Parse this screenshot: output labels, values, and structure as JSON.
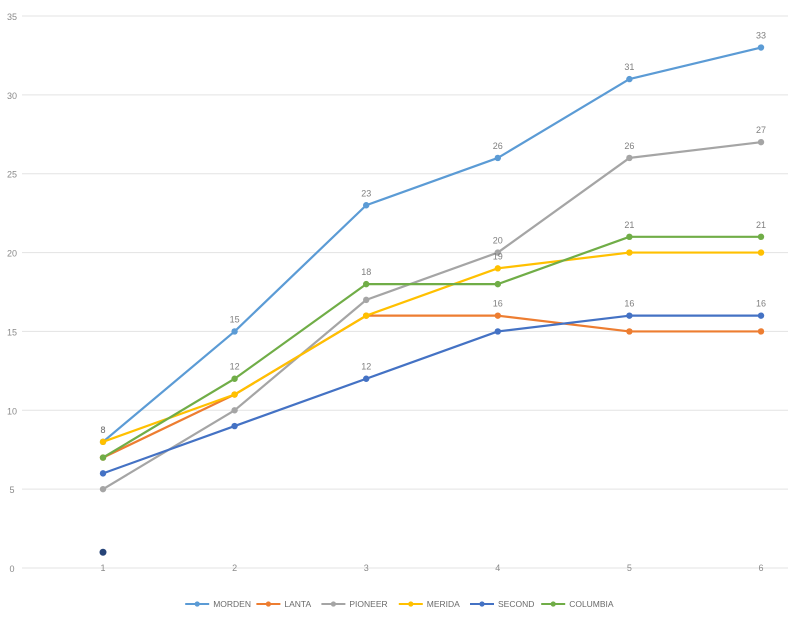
{
  "chart_data": {
    "type": "line",
    "title": "",
    "xlabel": "",
    "ylabel": "",
    "x": [
      1,
      2,
      3,
      4,
      5,
      6
    ],
    "ylim": [
      0,
      35
    ],
    "yticks": [
      0,
      5,
      10,
      15,
      20,
      25,
      30,
      35
    ],
    "grid": true,
    "legend_position": "bottom",
    "series": [
      {
        "name": "MORDEN",
        "color": "#5B9BD5",
        "values": [
          8,
          15,
          23,
          26,
          31,
          33
        ],
        "labels": [
          "8",
          "15",
          "23",
          "26",
          "31",
          "33"
        ]
      },
      {
        "name": "LANTA",
        "color": "#ED7D31",
        "values": [
          7,
          11,
          16,
          16,
          15,
          15
        ],
        "labels": [
          "",
          "",
          "",
          "16",
          "",
          ""
        ]
      },
      {
        "name": "PIONEER",
        "color": "#A5A5A5",
        "values": [
          5,
          10,
          17,
          20,
          26,
          27
        ],
        "labels": [
          "",
          "",
          "",
          "20",
          "26",
          "27"
        ]
      },
      {
        "name": "MERIDA",
        "color": "#FFC000",
        "values": [
          8,
          11,
          16,
          19,
          20,
          20
        ],
        "labels": [
          "8",
          "",
          "",
          "19",
          "",
          ""
        ]
      },
      {
        "name": "SECOND",
        "color": "#4472C4",
        "values": [
          6,
          9,
          12,
          15,
          16,
          16
        ],
        "labels": [
          "",
          "",
          "12",
          "",
          "16",
          "16"
        ]
      },
      {
        "name": "COLUMBIA",
        "color": "#70AD47",
        "values": [
          7,
          12,
          18,
          18,
          21,
          21
        ],
        "labels": [
          "",
          "12",
          "18",
          "",
          "21",
          "21"
        ]
      }
    ],
    "stray_point": {
      "x": 1,
      "y": 1,
      "color": "#264478"
    }
  }
}
